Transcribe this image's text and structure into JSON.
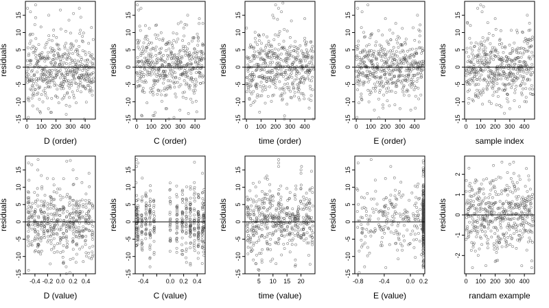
{
  "chart_data": [
    {
      "type": "scatter",
      "xlabel": "D (order)",
      "ylabel": "residuals",
      "xlim": [
        -10,
        470
      ],
      "ylim": [
        -15,
        19
      ],
      "xticks": [
        0,
        100,
        200,
        300,
        400
      ],
      "xtick_labels": [
        "0",
        "100",
        "200",
        "300",
        "400"
      ],
      "yticks": [
        -15,
        -10,
        -5,
        0,
        5,
        10,
        15
      ],
      "ytick_labels": [
        "-15",
        "-10",
        "-5",
        "0",
        "5",
        "10",
        "15"
      ],
      "hline": 0,
      "points": {
        "mode": "order",
        "n": 460,
        "seed": 11,
        "scale": 5,
        "lo": -15,
        "hi": 18.5,
        "outliers": [
          [
            5,
            17
          ],
          [
            25,
            16
          ],
          [
            60,
            18
          ],
          [
            150,
            15
          ],
          [
            230,
            16.5
          ],
          [
            320,
            15.5
          ],
          [
            360,
            17
          ],
          [
            10,
            -14.5
          ],
          [
            110,
            -10
          ],
          [
            270,
            -11
          ]
        ]
      }
    },
    {
      "type": "scatter",
      "xlabel": "C (order)",
      "ylabel": "residuals",
      "xlim": [
        -10,
        470
      ],
      "ylim": [
        -15,
        19
      ],
      "xticks": [
        0,
        100,
        200,
        300,
        400
      ],
      "xtick_labels": [
        "0",
        "100",
        "200",
        "300",
        "400"
      ],
      "yticks": [
        -15,
        -10,
        -5,
        0,
        5,
        10,
        15
      ],
      "ytick_labels": [
        "-15",
        "-10",
        "-5",
        "0",
        "5",
        "10",
        "15"
      ],
      "hline": 0,
      "points": {
        "mode": "order",
        "n": 460,
        "seed": 23,
        "scale": 5,
        "lo": -15,
        "hi": 18.5,
        "outliers": [
          [
            5,
            18
          ],
          [
            15,
            16.5
          ],
          [
            30,
            17
          ],
          [
            60,
            12
          ],
          [
            120,
            -14
          ],
          [
            200,
            -12
          ],
          [
            350,
            15
          ],
          [
            430,
            14
          ]
        ]
      }
    },
    {
      "type": "scatter",
      "xlabel": "time (order)",
      "ylabel": "residuals",
      "xlim": [
        -10,
        470
      ],
      "ylim": [
        -15,
        19
      ],
      "xticks": [
        0,
        100,
        200,
        300,
        400
      ],
      "xtick_labels": [
        "0",
        "100",
        "200",
        "300",
        "400"
      ],
      "yticks": [
        -15,
        -10,
        -5,
        0,
        5,
        10,
        15
      ],
      "ytick_labels": [
        "-15",
        "-10",
        "-5",
        "0",
        "5",
        "10",
        "15"
      ],
      "hline": 0,
      "points": {
        "mode": "order",
        "n": 460,
        "seed": 37,
        "scale": 5,
        "lo": -15,
        "hi": 18.5,
        "outliers": [
          [
            200,
            18
          ],
          [
            220,
            17
          ],
          [
            240,
            16
          ],
          [
            250,
            18.5
          ],
          [
            30,
            -11
          ],
          [
            90,
            -13
          ],
          [
            180,
            15
          ],
          [
            400,
            14
          ]
        ]
      }
    },
    {
      "type": "scatter",
      "xlabel": "E (order)",
      "ylabel": "residuals",
      "xlim": [
        -10,
        470
      ],
      "ylim": [
        -15,
        19
      ],
      "xticks": [
        0,
        100,
        200,
        300,
        400
      ],
      "xtick_labels": [
        "0",
        "100",
        "200",
        "300",
        "400"
      ],
      "yticks": [
        -15,
        -10,
        -5,
        0,
        5,
        10,
        15
      ],
      "ytick_labels": [
        "-15",
        "-10",
        "-5",
        "0",
        "5",
        "10",
        "15"
      ],
      "hline": 0,
      "points": {
        "mode": "order",
        "n": 460,
        "seed": 53,
        "scale": 5,
        "lo": -15,
        "hi": 18.5,
        "outliers": [
          [
            10,
            17
          ],
          [
            40,
            16
          ],
          [
            80,
            18
          ],
          [
            200,
            14
          ],
          [
            5,
            -14.5
          ],
          [
            300,
            -12
          ],
          [
            420,
            15
          ]
        ]
      }
    },
    {
      "type": "scatter",
      "xlabel": "sample index",
      "ylabel": "residuals",
      "xlim": [
        -10,
        470
      ],
      "ylim": [
        -15,
        19
      ],
      "xticks": [
        0,
        100,
        200,
        300,
        400
      ],
      "xtick_labels": [
        "0",
        "100",
        "200",
        "300",
        "400"
      ],
      "yticks": [
        -15,
        -10,
        -5,
        0,
        5,
        10,
        15
      ],
      "ytick_labels": [
        "-15",
        "-10",
        "-5",
        "0",
        "5",
        "10",
        "15"
      ],
      "hline": 0,
      "points": {
        "mode": "order",
        "n": 460,
        "seed": 71,
        "scale": 5,
        "lo": -15,
        "hi": 18.5,
        "outliers": [
          [
            80,
            17
          ],
          [
            100,
            18
          ],
          [
            110,
            16
          ],
          [
            120,
            17.5
          ],
          [
            200,
            14
          ],
          [
            230,
            -11
          ],
          [
            300,
            -12
          ],
          [
            420,
            15
          ]
        ]
      }
    },
    {
      "type": "scatter",
      "xlabel": "D (value)",
      "ylabel": "residuals",
      "xlim": [
        -0.55,
        0.55
      ],
      "ylim": [
        -15,
        19
      ],
      "xticks": [
        -0.4,
        -0.2,
        0.0,
        0.2,
        0.4
      ],
      "xtick_labels": [
        "-0.4",
        "-0.2",
        "0.0",
        "0.2",
        "0.4"
      ],
      "yticks": [
        -15,
        -10,
        -5,
        0,
        5,
        10,
        15
      ],
      "ytick_labels": [
        "-15",
        "-10",
        "-5",
        "0",
        "5",
        "10",
        "15"
      ],
      "hline": 0,
      "points": {
        "mode": "columns",
        "n": 460,
        "seed": 101,
        "scale": 5,
        "lo": -15,
        "hi": 18.5,
        "columns": [
          -0.5,
          -0.45,
          -0.4,
          -0.35,
          -0.3,
          -0.25,
          -0.2,
          -0.15,
          -0.1,
          -0.05,
          0.0,
          0.05,
          0.1,
          0.15,
          0.2,
          0.25,
          0.3,
          0.35,
          0.4,
          0.45,
          0.5
        ],
        "jitter": 0.012,
        "outliers": [
          [
            -0.5,
            17
          ],
          [
            -0.45,
            16.5
          ],
          [
            -0.35,
            18
          ],
          [
            0.1,
            17.5
          ],
          [
            0.2,
            15
          ],
          [
            0.45,
            14
          ],
          [
            -0.5,
            -14
          ],
          [
            0.05,
            -12
          ]
        ]
      }
    },
    {
      "type": "scatter",
      "xlabel": "C (value)",
      "ylabel": "residuals",
      "xlim": [
        -0.52,
        0.52
      ],
      "ylim": [
        -15,
        19
      ],
      "xticks": [
        -0.4,
        -0.2,
        0.0,
        0.2,
        0.4
      ],
      "xtick_labels": [
        "-0.4",
        "",
        "0.0",
        "0.2",
        "0.4"
      ],
      "yticks": [
        -15,
        -10,
        -5,
        0,
        5,
        10,
        15
      ],
      "ytick_labels": [
        "-15",
        "-10",
        "-5",
        "0",
        "5",
        "10",
        "15"
      ],
      "hline": 0,
      "points": {
        "mode": "columns",
        "n": 460,
        "seed": 131,
        "scale": 5,
        "lo": -15,
        "hi": 18.5,
        "columns": [
          -0.5,
          -0.48,
          -0.42,
          -0.36,
          -0.3,
          -0.24,
          0.0,
          0.1,
          0.18,
          0.24,
          0.3,
          0.36,
          0.42,
          0.48,
          0.5
        ],
        "jitter": 0.006,
        "outliers": [
          [
            -0.5,
            18
          ],
          [
            -0.48,
            17
          ],
          [
            -0.5,
            16
          ],
          [
            0.48,
            14
          ],
          [
            -0.3,
            -13
          ],
          [
            0.3,
            -12
          ]
        ]
      }
    },
    {
      "type": "scatter",
      "xlabel": "time (value)",
      "ylabel": "residuals",
      "xlim": [
        0,
        25
      ],
      "ylim": [
        -15,
        19
      ],
      "xticks": [
        5,
        10,
        15,
        20
      ],
      "xtick_labels": [
        "5",
        "10",
        "15",
        "20"
      ],
      "yticks": [
        -15,
        -10,
        -5,
        0,
        5,
        10,
        15
      ],
      "ytick_labels": [
        "-15",
        "-10",
        "-5",
        "0",
        "5",
        "10",
        "15"
      ],
      "hline": 0,
      "points": {
        "mode": "columns",
        "n": 460,
        "seed": 151,
        "scale": 5,
        "lo": -15,
        "hi": 18.5,
        "columns": [
          1,
          2,
          3,
          4,
          5,
          6,
          7,
          8,
          9,
          10,
          11,
          12,
          13,
          14,
          15,
          16,
          17,
          18,
          19,
          20,
          21,
          22,
          23,
          24
        ],
        "jitter": 0.25,
        "outliers": [
          [
            12,
            18
          ],
          [
            12,
            17
          ],
          [
            12,
            16
          ],
          [
            20,
            15
          ],
          [
            20,
            14
          ],
          [
            3,
            -11
          ],
          [
            5,
            -14
          ],
          [
            18,
            -11
          ]
        ]
      }
    },
    {
      "type": "scatter",
      "xlabel": "E (value)",
      "ylabel": "residuals",
      "xlim": [
        -0.85,
        0.22
      ],
      "ylim": [
        -15,
        19
      ],
      "xticks": [
        -0.8,
        -0.4,
        0.0,
        0.2
      ],
      "xtick_labels": [
        "-0.8",
        "-0.4",
        "0.0",
        "0.2"
      ],
      "yticks": [
        -15,
        -10,
        -5,
        0,
        5,
        10,
        15
      ],
      "ytick_labels": [
        "-15",
        "-10",
        "-5",
        "0",
        "5",
        "10",
        "15"
      ],
      "hline": 0,
      "points": {
        "mode": "clusterE",
        "n": 460,
        "seed": 181,
        "scale": 5,
        "lo": -15,
        "hi": 18.5,
        "outliers": [
          [
            -0.8,
            17
          ],
          [
            -0.6,
            18
          ],
          [
            -0.3,
            16
          ],
          [
            0.2,
            17
          ],
          [
            0.2,
            15
          ],
          [
            -0.7,
            -13
          ]
        ]
      }
    },
    {
      "type": "scatter",
      "xlabel": "randam example",
      "ylabel": "residuals",
      "xlim": [
        -10,
        470
      ],
      "ylim": [
        -2.9,
        2.9
      ],
      "xticks": [
        0,
        100,
        200,
        300,
        400
      ],
      "xtick_labels": [
        "0",
        "100",
        "200",
        "300",
        "400"
      ],
      "yticks": [
        -2,
        -1,
        0,
        1,
        2
      ],
      "ytick_labels": [
        "-2",
        "-1",
        "0",
        "1",
        "2"
      ],
      "hline": 0,
      "points": {
        "mode": "order",
        "n": 460,
        "seed": 211,
        "scale": 1,
        "lo": -2.6,
        "hi": 2.6,
        "outliers": [
          [
            20,
            2.3
          ],
          [
            300,
            2.5
          ],
          [
            200,
            -2.3
          ],
          [
            450,
            -2.6
          ]
        ]
      }
    }
  ]
}
